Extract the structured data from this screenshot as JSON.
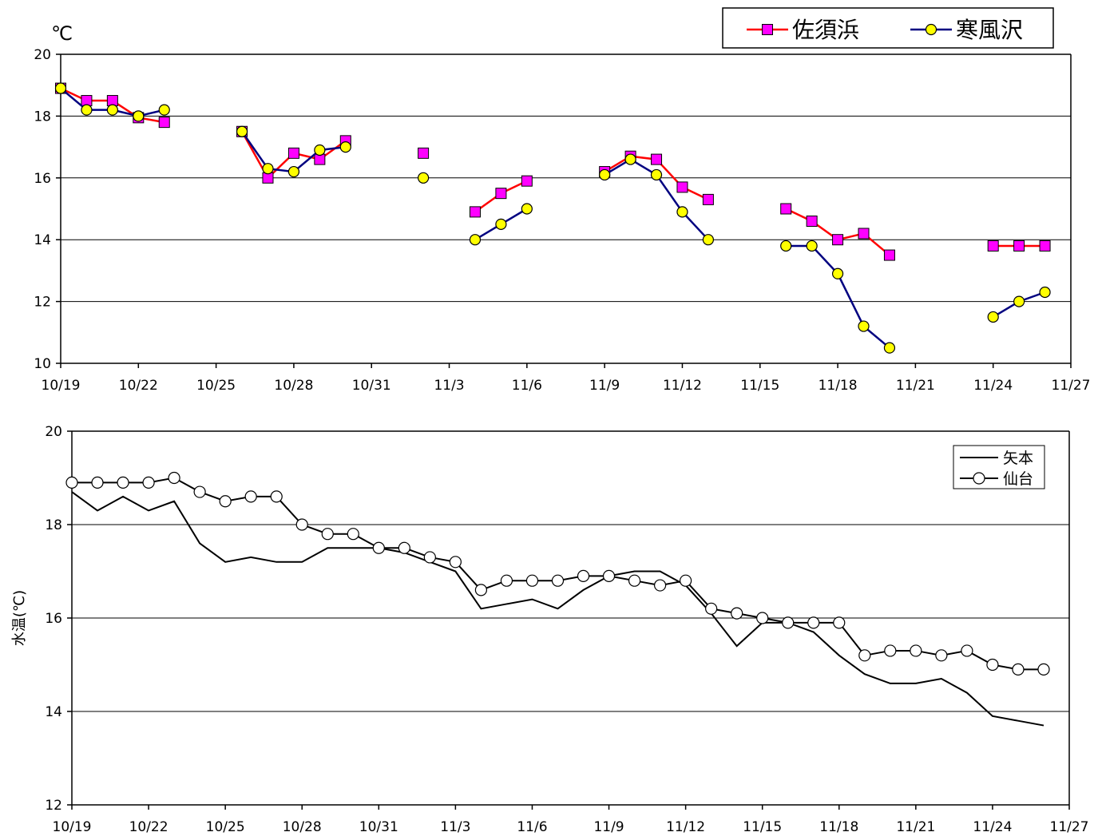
{
  "chart_data": [
    {
      "type": "line",
      "unit_label": "℃",
      "ylim": [
        10,
        20
      ],
      "yticks": [
        10,
        12,
        14,
        16,
        18,
        20
      ],
      "xlim": [
        "10/19",
        "11/27"
      ],
      "xticks": [
        "10/19",
        "10/22",
        "10/25",
        "10/28",
        "10/31",
        "11/3",
        "11/6",
        "11/9",
        "11/12",
        "11/15",
        "11/18",
        "11/21",
        "11/24",
        "11/27"
      ],
      "grid": true,
      "legend_position": "top-right",
      "series": [
        {
          "name": "佐須浜",
          "color": "#ff0000",
          "marker_color": "#ff00ff",
          "marker": "square",
          "segments": [
            [
              [
                "10/19",
                18.9
              ],
              [
                "10/20",
                18.5
              ],
              [
                "10/21",
                18.5
              ],
              [
                "10/22",
                17.95
              ],
              [
                "10/23",
                17.8
              ]
            ],
            [
              [
                "10/26",
                17.5
              ],
              [
                "10/27",
                16.0
              ],
              [
                "10/28",
                16.8
              ],
              [
                "10/29",
                16.6
              ],
              [
                "10/30",
                17.2
              ]
            ],
            [
              [
                "11/2",
                16.8
              ]
            ],
            [
              [
                "11/4",
                14.9
              ],
              [
                "11/5",
                15.5
              ],
              [
                "11/6",
                15.9
              ]
            ],
            [
              [
                "11/9",
                16.2
              ],
              [
                "11/10",
                16.7
              ],
              [
                "11/11",
                16.6
              ],
              [
                "11/12",
                15.7
              ],
              [
                "11/13",
                15.3
              ]
            ],
            [
              [
                "11/16",
                15.0
              ],
              [
                "11/17",
                14.6
              ],
              [
                "11/18",
                14.0
              ],
              [
                "11/19",
                14.2
              ],
              [
                "11/20",
                13.5
              ]
            ],
            [
              [
                "11/24",
                13.8
              ],
              [
                "11/25",
                13.8
              ],
              [
                "11/26",
                13.8
              ]
            ]
          ]
        },
        {
          "name": "寒風沢",
          "color": "#000080",
          "marker_color": "#ffff00",
          "marker": "circle",
          "segments": [
            [
              [
                "10/19",
                18.9
              ],
              [
                "10/20",
                18.2
              ],
              [
                "10/21",
                18.2
              ],
              [
                "10/22",
                18.0
              ],
              [
                "10/23",
                18.2
              ]
            ],
            [
              [
                "10/26",
                17.5
              ],
              [
                "10/27",
                16.3
              ],
              [
                "10/28",
                16.2
              ],
              [
                "10/29",
                16.9
              ],
              [
                "10/30",
                17.0
              ]
            ],
            [
              [
                "11/2",
                16.0
              ]
            ],
            [
              [
                "11/4",
                14.0
              ],
              [
                "11/5",
                14.5
              ],
              [
                "11/6",
                15.0
              ]
            ],
            [
              [
                "11/9",
                16.1
              ],
              [
                "11/10",
                16.6
              ],
              [
                "11/11",
                16.1
              ],
              [
                "11/12",
                14.9
              ],
              [
                "11/13",
                14.0
              ]
            ],
            [
              [
                "11/16",
                13.8
              ],
              [
                "11/17",
                13.8
              ],
              [
                "11/18",
                12.9
              ],
              [
                "11/19",
                11.2
              ],
              [
                "11/20",
                10.5
              ]
            ],
            [
              [
                "11/24",
                11.5
              ],
              [
                "11/25",
                12.0
              ],
              [
                "11/26",
                12.3
              ]
            ]
          ]
        }
      ]
    },
    {
      "type": "line",
      "ylabel": "水温(℃)",
      "ylim": [
        12,
        20
      ],
      "yticks": [
        12,
        14,
        16,
        18,
        20
      ],
      "xlim": [
        "10/19",
        "11/27"
      ],
      "xticks": [
        "10/19",
        "10/22",
        "10/25",
        "10/28",
        "10/31",
        "11/3",
        "11/6",
        "11/9",
        "11/12",
        "11/15",
        "11/18",
        "11/21",
        "11/24",
        "11/27"
      ],
      "grid": true,
      "legend_position": "top-right",
      "series": [
        {
          "name": "矢本",
          "color": "#000000",
          "marker": "none",
          "x": [
            "10/19",
            "10/20",
            "10/21",
            "10/22",
            "10/23",
            "10/24",
            "10/25",
            "10/26",
            "10/27",
            "10/28",
            "10/29",
            "10/30",
            "10/31",
            "11/1",
            "11/2",
            "11/3",
            "11/4",
            "11/5",
            "11/6",
            "11/7",
            "11/8",
            "11/9",
            "11/10",
            "11/11",
            "11/12",
            "11/13",
            "11/14",
            "11/15",
            "11/16",
            "11/17",
            "11/18",
            "11/19",
            "11/20",
            "11/21",
            "11/22",
            "11/23",
            "11/24",
            "11/25",
            "11/26"
          ],
          "values": [
            18.7,
            18.3,
            18.6,
            18.3,
            18.5,
            17.6,
            17.2,
            17.3,
            17.2,
            17.2,
            17.5,
            17.5,
            17.5,
            17.4,
            17.2,
            17.0,
            16.2,
            16.3,
            16.4,
            16.2,
            16.6,
            16.9,
            17.0,
            17.0,
            16.7,
            16.1,
            15.4,
            15.9,
            15.9,
            15.7,
            15.2,
            14.8,
            14.6,
            14.6,
            14.7,
            14.4,
            13.9,
            13.8,
            13.7
          ]
        },
        {
          "name": "仙台",
          "color": "#000000",
          "marker_color": "#ffffff",
          "marker": "circle",
          "x": [
            "10/19",
            "10/20",
            "10/21",
            "10/22",
            "10/23",
            "10/24",
            "10/25",
            "10/26",
            "10/27",
            "10/28",
            "10/29",
            "10/30",
            "10/31",
            "11/1",
            "11/2",
            "11/3",
            "11/4",
            "11/5",
            "11/6",
            "11/7",
            "11/8",
            "11/9",
            "11/10",
            "11/11",
            "11/12",
            "11/13",
            "11/14",
            "11/15",
            "11/16",
            "11/17",
            "11/18",
            "11/19",
            "11/20",
            "11/21",
            "11/22",
            "11/23",
            "11/24",
            "11/25",
            "11/26"
          ],
          "values": [
            18.9,
            18.9,
            18.9,
            18.9,
            19.0,
            18.7,
            18.5,
            18.6,
            18.6,
            18.0,
            17.8,
            17.8,
            17.5,
            17.5,
            17.3,
            17.2,
            16.6,
            16.8,
            16.8,
            16.8,
            16.9,
            16.9,
            16.8,
            16.7,
            16.8,
            16.2,
            16.1,
            16.0,
            15.9,
            15.9,
            15.9,
            15.2,
            15.3,
            15.3,
            15.2,
            15.3,
            15.0,
            14.9,
            14.9
          ]
        }
      ]
    }
  ]
}
